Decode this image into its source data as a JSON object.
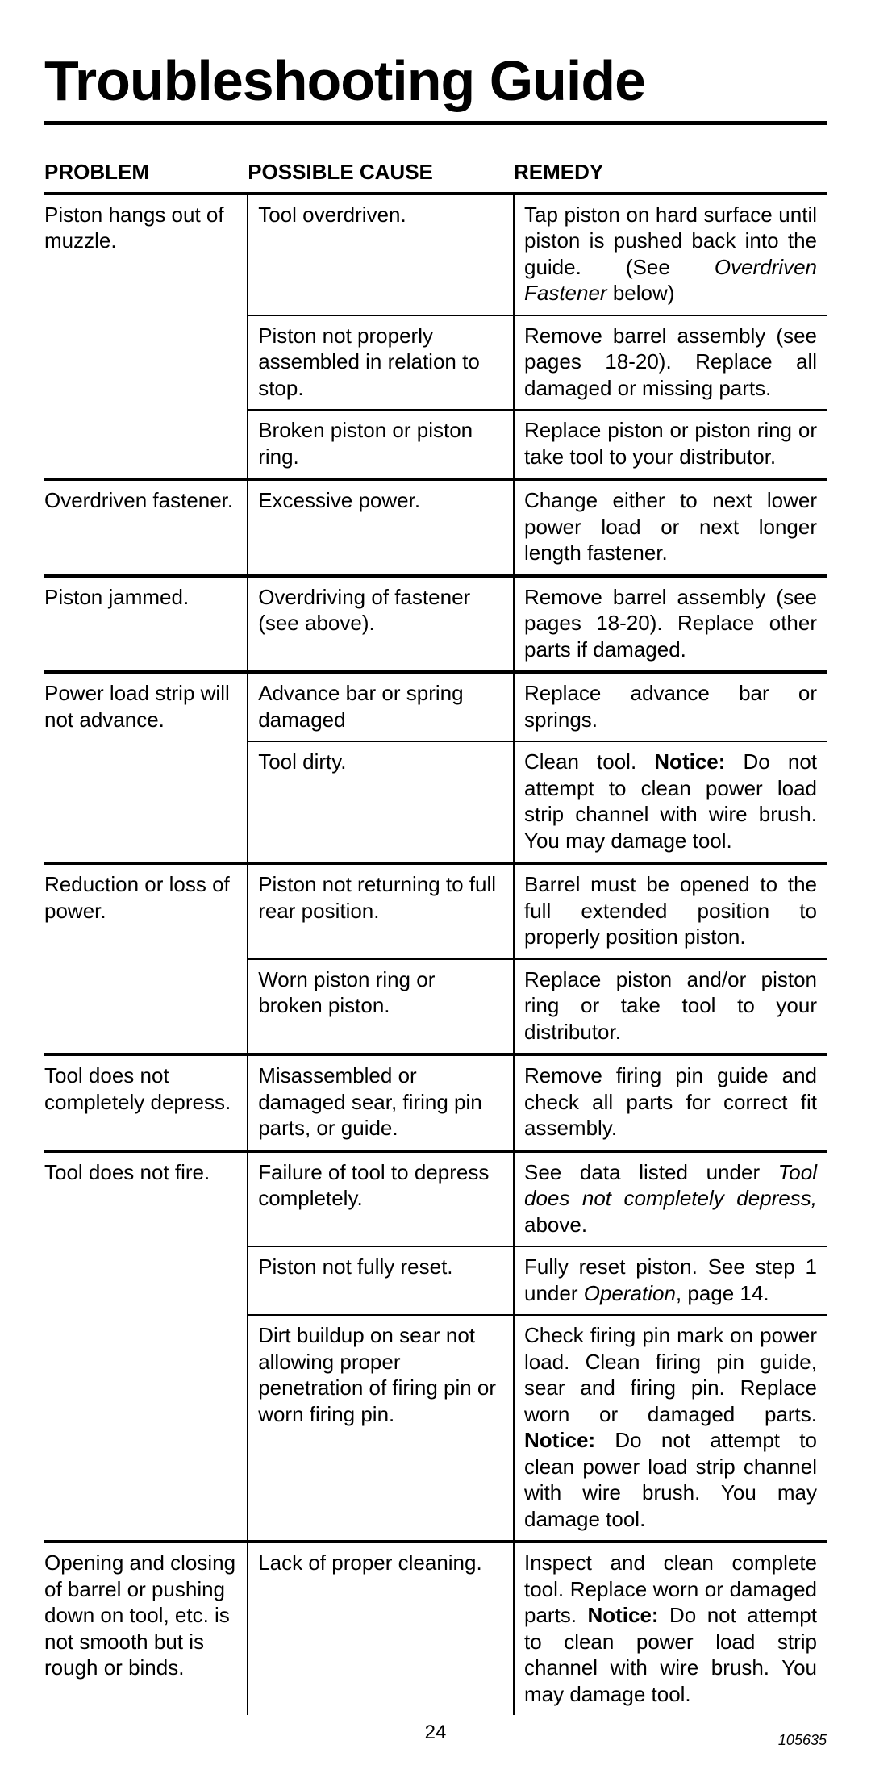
{
  "title": "Troubleshooting Guide",
  "columns": {
    "problem": "PROBLEM",
    "cause": "POSSIBLE CAUSE",
    "remedy": "REMEDY"
  },
  "page_number": "24",
  "doc_id": "105635",
  "rows": [
    {
      "problem": "Piston hangs out of muzzle.",
      "cause": "Tool overdriven.",
      "remedy_html": "Tap piston on hard surface until piston is pushed back into the guide. (See <span class=\"italic\">Overdriven Fastener</span> below)",
      "new_group": true
    },
    {
      "problem": "",
      "cause": "Piston not properly assembled in relation to stop.",
      "remedy_html": "Remove barrel assembly (see pages 18-20). Replace all damaged or missing parts.",
      "new_group": false
    },
    {
      "problem": "",
      "cause": "Broken piston or piston ring.",
      "remedy_html": "Replace piston or piston ring or take tool to your distributor.",
      "new_group": false
    },
    {
      "problem": "Overdriven fastener.",
      "cause": "Excessive power.",
      "remedy_html": "Change either to next lower power load or next longer length fastener.",
      "new_group": true
    },
    {
      "problem": "Piston jammed.",
      "cause": "Overdriving of fastener (see above).",
      "remedy_html": "Remove barrel assembly (see pages 18-20). Replace other parts if damaged.",
      "new_group": true
    },
    {
      "problem": "Power load strip will not advance.",
      "cause": "Advance bar or spring damaged",
      "remedy_html": "Replace advance bar or springs.",
      "new_group": true
    },
    {
      "problem": "",
      "cause": "Tool dirty.",
      "remedy_html": "Clean tool. <span class=\"bold\">Notice:</span> Do not attempt to clean power load strip channel with wire brush. You may damage tool.",
      "new_group": false
    },
    {
      "problem": "Reduction or loss of power.",
      "cause": "Piston not returning to full rear position.",
      "remedy_html": "Barrel must be opened to the full extended position to properly position piston.",
      "new_group": true
    },
    {
      "problem": "",
      "cause": "Worn piston ring or broken piston.",
      "remedy_html": "Replace piston and/or piston ring or take tool to your distributor.",
      "new_group": false
    },
    {
      "problem": "Tool does not completely depress.",
      "cause": "Misassembled or damaged sear, firing pin parts, or guide.",
      "remedy_html": "Remove firing pin guide and check all parts for correct fit assembly.",
      "new_group": true
    },
    {
      "problem": "Tool does not fire.",
      "cause": "Failure of tool to depress completely.",
      "remedy_html": "See data listed under <span class=\"italic\">Tool does not completely depress,</span> above.",
      "new_group": true
    },
    {
      "problem": "",
      "cause": "Piston not fully reset.",
      "remedy_html": "Fully reset piston. See step 1 under <span class=\"italic\">Operation</span>, page 14.",
      "new_group": false
    },
    {
      "problem": "",
      "cause": "Dirt buildup on sear not allowing proper penetration of firing pin or worn firing pin.",
      "remedy_html": "Check firing pin mark on power load. Clean firing pin guide, sear and firing pin. Replace worn or damaged parts. <span class=\"bold\">Notice:</span> Do not attempt to clean power load strip channel with wire brush. You may damage tool.",
      "new_group": false
    },
    {
      "problem": "Opening and closing of barrel or pushing down on tool, etc. is not smooth but is rough or binds.",
      "cause": "Lack of proper cleaning.",
      "remedy_html": "Inspect and clean complete tool. Replace worn or damaged parts. <span class=\"bold\">Notice:</span> Do not attempt to clean power load strip channel with wire brush. You may damage tool.",
      "new_group": true
    }
  ]
}
